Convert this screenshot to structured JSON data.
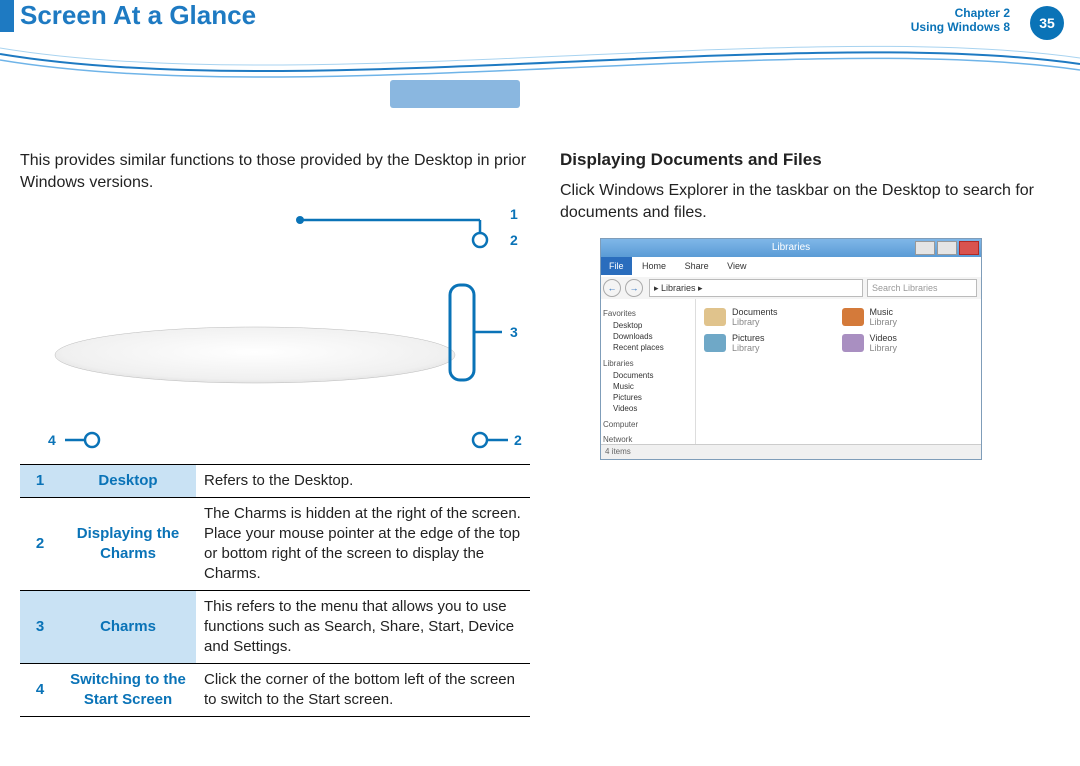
{
  "header": {
    "title": "Screen At a Glance",
    "chapter_line1": "Chapter 2",
    "chapter_line2": "Using Windows 8",
    "page_num": "35",
    "accent": "#1e7ac2",
    "badge_bg": "#0a73b7"
  },
  "left": {
    "intro": "This provides similar functions to those provided by the Desktop in prior Windows versions.",
    "diagram": {
      "stroke": "#0a73b7",
      "stroke_width": 2.5,
      "circle_r": 7,
      "labels": {
        "one": "1",
        "two_top": "2",
        "three": "3",
        "four": "4",
        "two_bot": "2"
      }
    },
    "table": {
      "header_cell_bg": "#c9e2f4",
      "rows": [
        {
          "n": "1",
          "term": "Desktop",
          "desc": "Refers to the Desktop.",
          "alt": true
        },
        {
          "n": "2",
          "term": "Displaying the Charms",
          "desc": "The Charms is hidden at the right of the screen. Place your mouse pointer at the edge of the top or bottom right of the screen to display the Charms.",
          "alt": false
        },
        {
          "n": "3",
          "term": "Charms",
          "desc": "This refers to the menu that allows you to use functions such as Search, Share, Start, Device and Settings.",
          "alt": true
        },
        {
          "n": "4",
          "term": "Switching to the Start Screen",
          "desc": "Click the corner of the bottom left of the screen to switch to the Start screen.",
          "alt": false
        }
      ]
    }
  },
  "right": {
    "subhead": "Displaying Documents and Files",
    "para": "Click Windows Explorer in the taskbar on the Desktop           to search for documents and files.",
    "explorer": {
      "title": "Libraries",
      "tabs": {
        "file": "File",
        "home": "Home",
        "share": "Share",
        "view": "View"
      },
      "nav": {
        "back": "←",
        "fwd": "→",
        "address": "▸ Libraries ▸",
        "search": "Search Libraries"
      },
      "side": {
        "favorites": "Favorites",
        "fav_items": [
          "Desktop",
          "Downloads",
          "Recent places"
        ],
        "libraries": "Libraries",
        "lib_items": [
          "Documents",
          "Music",
          "Pictures",
          "Videos"
        ],
        "computer": "Computer",
        "network": "Network"
      },
      "main_items": [
        {
          "name": "Documents",
          "sub": "Library",
          "color": "#e0c38c"
        },
        {
          "name": "Music",
          "sub": "Library",
          "color": "#d47a3a"
        },
        {
          "name": "Pictures",
          "sub": "Library",
          "color": "#6fa8c7"
        },
        {
          "name": "Videos",
          "sub": "Library",
          "color": "#a98fc1"
        }
      ],
      "status": "4 items"
    }
  }
}
